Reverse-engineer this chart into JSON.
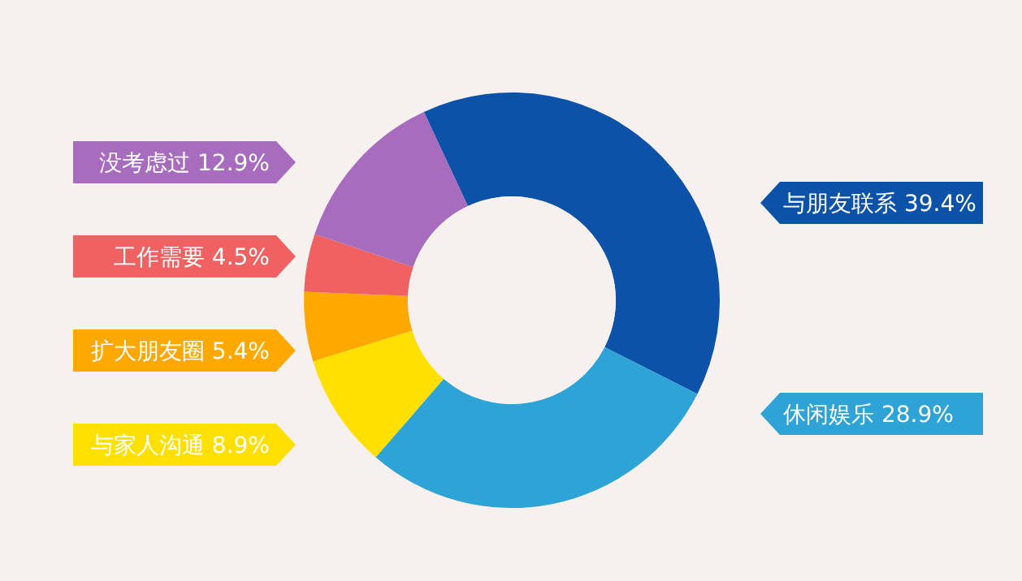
{
  "chart_data": {
    "type": "donut",
    "categories": [
      "与朋友联系",
      "休闲娱乐",
      "与家人沟通",
      "扩大朋友圈",
      "工作需要",
      "没考虑过"
    ],
    "values": [
      39.4,
      28.9,
      8.9,
      5.4,
      4.5,
      12.9
    ],
    "value_labels": [
      "39.4%",
      "28.9%",
      "8.9%",
      "5.4%",
      "4.5%",
      "12.9%"
    ],
    "colors": [
      "#0b52a8",
      "#2ea3d6",
      "#ffe000",
      "#ffa800",
      "#f06262",
      "#a86cbf"
    ]
  }
}
